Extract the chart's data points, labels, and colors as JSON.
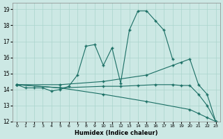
{
  "xlabel": "Humidex (Indice chaleur)",
  "xlim": [
    -0.5,
    23.5
  ],
  "ylim": [
    12,
    19.4
  ],
  "xticks": [
    0,
    1,
    2,
    3,
    4,
    5,
    6,
    7,
    8,
    9,
    10,
    11,
    12,
    13,
    14,
    15,
    16,
    17,
    18,
    19,
    20,
    21,
    22,
    23
  ],
  "yticks": [
    12,
    13,
    14,
    15,
    16,
    17,
    18,
    19
  ],
  "bg_color": "#cce8e4",
  "grid_color": "#aad4cc",
  "line_color": "#1a6e64",
  "series": [
    {
      "x": [
        0,
        1,
        2,
        3,
        4,
        5,
        6,
        7,
        8,
        9,
        10,
        11,
        12,
        13,
        14,
        15,
        16,
        17,
        18
      ],
      "y": [
        14.3,
        14.1,
        14.1,
        14.1,
        13.9,
        14.0,
        14.2,
        14.9,
        16.7,
        16.8,
        15.5,
        16.6,
        14.4,
        17.7,
        18.9,
        18.9,
        18.3,
        17.7,
        15.9
      ]
    },
    {
      "x": [
        0,
        5,
        10,
        15,
        20,
        21,
        22,
        23
      ],
      "y": [
        14.3,
        14.1,
        13.7,
        13.25,
        12.75,
        12.5,
        12.25,
        12.0
      ]
    },
    {
      "x": [
        0,
        5,
        10,
        15,
        18,
        19,
        20,
        21,
        22,
        23
      ],
      "y": [
        14.3,
        14.3,
        14.5,
        14.9,
        15.5,
        15.7,
        15.9,
        14.3,
        13.7,
        12.0
      ]
    },
    {
      "x": [
        0,
        5,
        10,
        12,
        14,
        16,
        18,
        19,
        20,
        21,
        22,
        23
      ],
      "y": [
        14.3,
        14.1,
        14.2,
        14.2,
        14.25,
        14.3,
        14.3,
        14.25,
        14.25,
        13.7,
        13.0,
        12.0
      ]
    }
  ]
}
